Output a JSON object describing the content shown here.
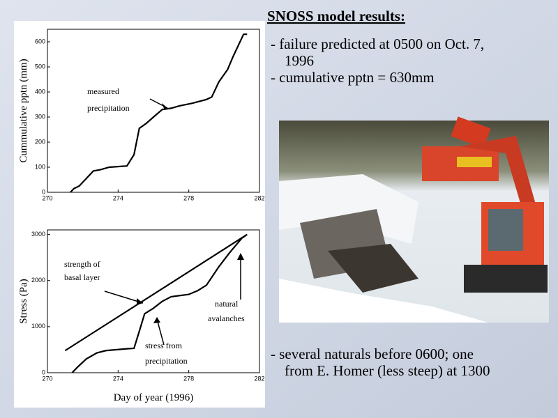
{
  "title": "SNOSS model results:",
  "bullets_top": [
    [
      "- failure predicted at 0500 on Oct. 7,",
      "1996"
    ],
    [
      "- cumulative pptn = 630mm"
    ]
  ],
  "bullets_bottom": [
    [
      "- several naturals before 0600; one",
      "from E. Homer (less steep) at 1300"
    ]
  ],
  "chart_data": [
    {
      "type": "line",
      "ylabel": "Cummulative pptn (mm)",
      "xlim": [
        270,
        282
      ],
      "xticks": [
        270,
        274,
        278,
        282
      ],
      "ylim": [
        0,
        650
      ],
      "yticks": [
        0,
        100,
        200,
        300,
        400,
        500,
        600
      ],
      "annotations": [
        "measured",
        "precipitation"
      ],
      "series": [
        {
          "color": "#000000",
          "x": [
            271.3,
            271.5,
            271.8,
            272.2,
            272.6,
            273.0,
            273.5,
            274.5,
            274.9,
            275.2,
            275.6,
            276.0,
            276.5,
            277.0,
            277.5,
            278.2,
            279.0,
            279.3,
            279.7,
            280.2,
            280.5,
            281.1,
            281.3
          ],
          "values": [
            0,
            15,
            25,
            55,
            85,
            90,
            100,
            105,
            150,
            255,
            275,
            300,
            330,
            335,
            345,
            355,
            370,
            380,
            440,
            490,
            540,
            630,
            630
          ]
        }
      ]
    },
    {
      "type": "line",
      "ylabel": "Stress (Pa)",
      "xlabel": "Day of year (1996)",
      "xlim": [
        270,
        282
      ],
      "xticks": [
        270,
        274,
        278,
        282
      ],
      "ylim": [
        0,
        3100
      ],
      "yticks": [
        0,
        1000,
        2000,
        3000
      ],
      "annotations": [
        "strength of",
        "basal layer",
        "natural",
        "avalanches",
        "stress from",
        "precipitation"
      ],
      "series": [
        {
          "color": "#000000",
          "x": [
            271.0,
            281.3
          ],
          "values": [
            480,
            3000
          ]
        },
        {
          "color": "#000000",
          "x": [
            271.4,
            271.7,
            272.2,
            272.8,
            273.3,
            274.5,
            274.9,
            275.2,
            275.5,
            276.0,
            276.5,
            277.0,
            278.0,
            278.5,
            279.0,
            279.7,
            280.3,
            281.0,
            281.3
          ],
          "values": [
            0,
            120,
            300,
            430,
            480,
            520,
            530,
            900,
            1280,
            1400,
            1550,
            1650,
            1700,
            1780,
            1900,
            2300,
            2600,
            2920,
            3000
          ]
        }
      ]
    }
  ]
}
